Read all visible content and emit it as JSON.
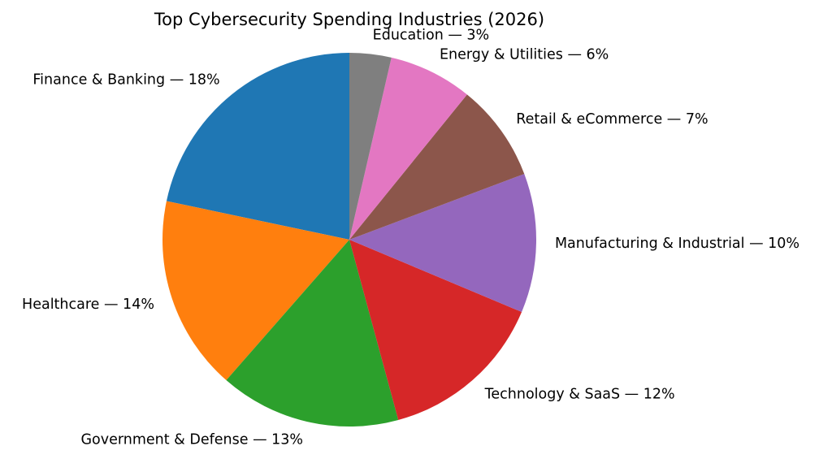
{
  "chart_data": {
    "type": "pie",
    "title": "Top Cybersecurity Spending Industries (2026)",
    "start_angle_deg": 90,
    "direction": "counterclockwise",
    "slices": [
      {
        "label": "Finance & Banking — 18%",
        "value": 18,
        "color": "#1f77b4"
      },
      {
        "label": "Healthcare — 14%",
        "value": 14,
        "color": "#ff7f0e"
      },
      {
        "label": "Government & Defense — 13%",
        "value": 13,
        "color": "#2ca02c"
      },
      {
        "label": "Technology & SaaS — 12%",
        "value": 12,
        "color": "#d62728"
      },
      {
        "label": "Manufacturing & Industrial — 10%",
        "value": 10,
        "color": "#9467bd"
      },
      {
        "label": "Retail & eCommerce — 7%",
        "value": 7,
        "color": "#8c564b"
      },
      {
        "label": "Energy & Utilities — 6%",
        "value": 6,
        "color": "#e377c2"
      },
      {
        "label": "Education — 3%",
        "value": 3,
        "color": "#7f7f7f"
      }
    ]
  }
}
